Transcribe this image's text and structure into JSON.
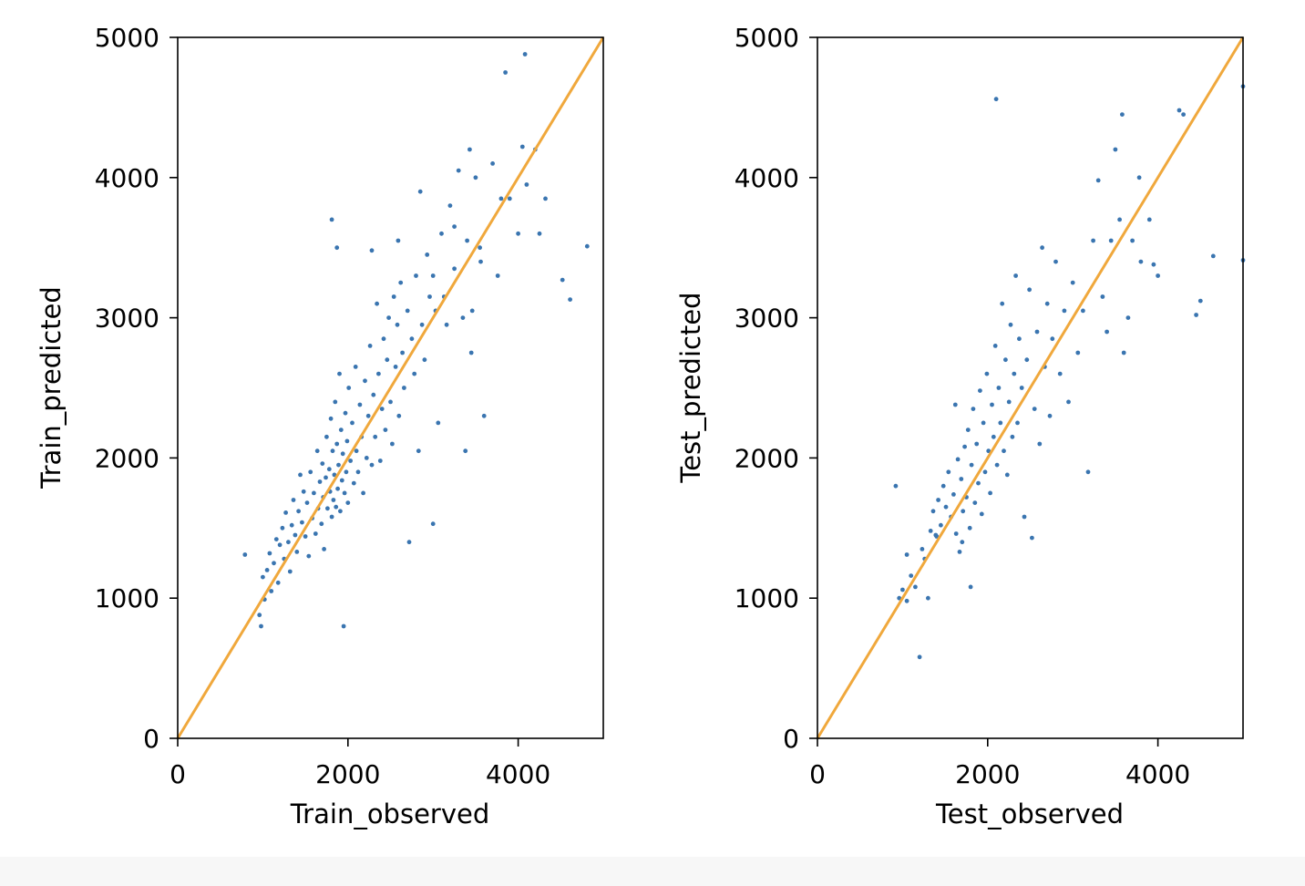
{
  "colors": {
    "points": "#3a75b0",
    "line": "#f0a83c",
    "axis": "#000000"
  },
  "chart_data": [
    {
      "type": "scatter",
      "xlabel": "Train_observed",
      "ylabel": "Train_predicted",
      "xlim": [
        0,
        5000
      ],
      "ylim": [
        0,
        5000
      ],
      "xticks": [
        0,
        2000,
        4000
      ],
      "yticks": [
        0,
        1000,
        2000,
        3000,
        4000,
        5000
      ],
      "reference_line": {
        "x": [
          0,
          5000
        ],
        "y": [
          0,
          5000
        ]
      },
      "points": [
        [
          790,
          1310
        ],
        [
          960,
          880
        ],
        [
          980,
          800
        ],
        [
          1000,
          1150
        ],
        [
          1020,
          990
        ],
        [
          1050,
          1200
        ],
        [
          1080,
          1320
        ],
        [
          1100,
          1050
        ],
        [
          1130,
          1250
        ],
        [
          1160,
          1420
        ],
        [
          1180,
          1110
        ],
        [
          1200,
          1380
        ],
        [
          1230,
          1500
        ],
        [
          1250,
          1280
        ],
        [
          1270,
          1610
        ],
        [
          1300,
          1400
        ],
        [
          1320,
          1190
        ],
        [
          1340,
          1520
        ],
        [
          1360,
          1700
        ],
        [
          1380,
          1450
        ],
        [
          1400,
          1330
        ],
        [
          1420,
          1620
        ],
        [
          1440,
          1880
        ],
        [
          1460,
          1540
        ],
        [
          1480,
          1760
        ],
        [
          1500,
          1440
        ],
        [
          1520,
          1680
        ],
        [
          1540,
          1300
        ],
        [
          1560,
          1900
        ],
        [
          1580,
          1570
        ],
        [
          1600,
          1750
        ],
        [
          1620,
          1460
        ],
        [
          1640,
          2050
        ],
        [
          1650,
          1640
        ],
        [
          1670,
          1830
        ],
        [
          1690,
          1530
        ],
        [
          1700,
          1960
        ],
        [
          1710,
          1720
        ],
        [
          1720,
          1350
        ],
        [
          1740,
          1860
        ],
        [
          1750,
          2150
        ],
        [
          1760,
          1640
        ],
        [
          1780,
          1920
        ],
        [
          1790,
          1760
        ],
        [
          1800,
          2280
        ],
        [
          1810,
          1580
        ],
        [
          1820,
          2050
        ],
        [
          1830,
          1700
        ],
        [
          1840,
          1880
        ],
        [
          1850,
          2400
        ],
        [
          1860,
          1650
        ],
        [
          1870,
          2100
        ],
        [
          1880,
          1780
        ],
        [
          1890,
          1950
        ],
        [
          1900,
          2600
        ],
        [
          1910,
          1620
        ],
        [
          1920,
          2200
        ],
        [
          1930,
          1840
        ],
        [
          1940,
          2030
        ],
        [
          1950,
          800
        ],
        [
          1960,
          1750
        ],
        [
          1970,
          2320
        ],
        [
          1980,
          1900
        ],
        [
          1990,
          2120
        ],
        [
          2000,
          1680
        ],
        [
          2010,
          2500
        ],
        [
          2030,
          1980
        ],
        [
          2050,
          2250
        ],
        [
          2070,
          1820
        ],
        [
          2090,
          2650
        ],
        [
          2100,
          2050
        ],
        [
          2120,
          1900
        ],
        [
          2140,
          2380
        ],
        [
          2160,
          2150
        ],
        [
          2180,
          1750
        ],
        [
          2200,
          2550
        ],
        [
          2220,
          2000
        ],
        [
          2240,
          2300
        ],
        [
          2260,
          2800
        ],
        [
          2280,
          1950
        ],
        [
          2300,
          2450
        ],
        [
          2320,
          2150
        ],
        [
          2340,
          3100
        ],
        [
          2360,
          2600
        ],
        [
          2380,
          1980
        ],
        [
          2400,
          2350
        ],
        [
          2420,
          2850
        ],
        [
          2440,
          2200
        ],
        [
          2460,
          2700
        ],
        [
          2480,
          3000
        ],
        [
          2500,
          2400
        ],
        [
          2520,
          2100
        ],
        [
          2540,
          3150
        ],
        [
          2560,
          2650
        ],
        [
          2580,
          2950
        ],
        [
          2600,
          2300
        ],
        [
          2620,
          3250
        ],
        [
          2640,
          2750
        ],
        [
          2660,
          2500
        ],
        [
          2700,
          3050
        ],
        [
          2720,
          1400
        ],
        [
          2750,
          2850
        ],
        [
          2780,
          2600
        ],
        [
          2800,
          3300
        ],
        [
          2830,
          2050
        ],
        [
          2850,
          3900
        ],
        [
          2870,
          2950
        ],
        [
          2900,
          2700
        ],
        [
          2930,
          3450
        ],
        [
          2960,
          3150
        ],
        [
          3000,
          1530
        ],
        [
          3030,
          3050
        ],
        [
          3060,
          2250
        ],
        [
          3100,
          3600
        ],
        [
          3130,
          3150
        ],
        [
          3160,
          2950
        ],
        [
          3200,
          3800
        ],
        [
          3250,
          3350
        ],
        [
          3300,
          4050
        ],
        [
          3350,
          3000
        ],
        [
          3380,
          2050
        ],
        [
          3400,
          3550
        ],
        [
          3430,
          4200
        ],
        [
          3460,
          3050
        ],
        [
          3500,
          4000
        ],
        [
          3560,
          3400
        ],
        [
          3600,
          2300
        ],
        [
          3700,
          4100
        ],
        [
          3760,
          3300
        ],
        [
          3800,
          3850
        ],
        [
          3850,
          4750
        ],
        [
          3900,
          3850
        ],
        [
          4000,
          3600
        ],
        [
          4050,
          4220
        ],
        [
          4080,
          4880
        ],
        [
          4100,
          3950
        ],
        [
          4200,
          4200
        ],
        [
          4250,
          3600
        ],
        [
          4320,
          3850
        ],
        [
          4520,
          3270
        ],
        [
          4610,
          3130
        ],
        [
          4810,
          3510
        ],
        [
          1810,
          3700
        ],
        [
          1870,
          3500
        ],
        [
          2280,
          3480
        ],
        [
          2590,
          3550
        ],
        [
          3000,
          3300
        ],
        [
          3250,
          3650
        ],
        [
          3550,
          3500
        ],
        [
          3450,
          2750
        ]
      ]
    },
    {
      "type": "scatter",
      "xlabel": "Test_observed",
      "ylabel": "Test_predicted",
      "xlim": [
        0,
        5000
      ],
      "ylim": [
        0,
        5000
      ],
      "xticks": [
        0,
        2000,
        4000
      ],
      "yticks": [
        0,
        1000,
        2000,
        3000,
        4000,
        5000
      ],
      "reference_line": {
        "x": [
          0,
          5000
        ],
        "y": [
          0,
          5000
        ]
      },
      "points": [
        [
          920,
          1800
        ],
        [
          960,
          1000
        ],
        [
          1000,
          1060
        ],
        [
          1050,
          980
        ],
        [
          1100,
          1160
        ],
        [
          1150,
          1080
        ],
        [
          1200,
          580
        ],
        [
          1230,
          1350
        ],
        [
          1260,
          1280
        ],
        [
          1300,
          1000
        ],
        [
          1330,
          1480
        ],
        [
          1360,
          1620
        ],
        [
          1390,
          1450
        ],
        [
          1420,
          1700
        ],
        [
          1450,
          1520
        ],
        [
          1480,
          1800
        ],
        [
          1510,
          1650
        ],
        [
          1540,
          1900
        ],
        [
          1570,
          1580
        ],
        [
          1600,
          1740
        ],
        [
          1630,
          1460
        ],
        [
          1650,
          1990
        ],
        [
          1670,
          1330
        ],
        [
          1690,
          1850
        ],
        [
          1710,
          1620
        ],
        [
          1730,
          2080
        ],
        [
          1750,
          1720
        ],
        [
          1770,
          2200
        ],
        [
          1790,
          1500
        ],
        [
          1810,
          1950
        ],
        [
          1830,
          2350
        ],
        [
          1850,
          1680
        ],
        [
          1870,
          2100
        ],
        [
          1890,
          1820
        ],
        [
          1910,
          2480
        ],
        [
          1930,
          1600
        ],
        [
          1950,
          2250
        ],
        [
          1970,
          1900
        ],
        [
          1990,
          2600
        ],
        [
          2010,
          2050
        ],
        [
          2030,
          1750
        ],
        [
          2050,
          2380
        ],
        [
          2070,
          2150
        ],
        [
          2090,
          2800
        ],
        [
          2110,
          1950
        ],
        [
          2130,
          2500
        ],
        [
          2150,
          2250
        ],
        [
          2170,
          3100
        ],
        [
          2190,
          2050
        ],
        [
          2210,
          2700
        ],
        [
          2230,
          1880
        ],
        [
          2250,
          2400
        ],
        [
          2270,
          2950
        ],
        [
          2290,
          2150
        ],
        [
          2310,
          2600
        ],
        [
          2330,
          3300
        ],
        [
          2350,
          2250
        ],
        [
          2370,
          2850
        ],
        [
          2400,
          2500
        ],
        [
          2430,
          1580
        ],
        [
          2460,
          2700
        ],
        [
          2490,
          3200
        ],
        [
          2520,
          1430
        ],
        [
          2550,
          2350
        ],
        [
          2580,
          2900
        ],
        [
          2610,
          2100
        ],
        [
          2640,
          3500
        ],
        [
          2670,
          2650
        ],
        [
          2700,
          3100
        ],
        [
          2730,
          2300
        ],
        [
          2760,
          2850
        ],
        [
          2800,
          3400
        ],
        [
          2850,
          2600
        ],
        [
          2900,
          3050
        ],
        [
          2950,
          2400
        ],
        [
          3000,
          3250
        ],
        [
          3060,
          2750
        ],
        [
          3120,
          3050
        ],
        [
          3180,
          1900
        ],
        [
          3240,
          3550
        ],
        [
          3300,
          3980
        ],
        [
          3350,
          3150
        ],
        [
          3400,
          2900
        ],
        [
          3450,
          3550
        ],
        [
          3500,
          4200
        ],
        [
          3550,
          3700
        ],
        [
          3580,
          4450
        ],
        [
          3600,
          2750
        ],
        [
          3650,
          3000
        ],
        [
          3700,
          3550
        ],
        [
          3780,
          4000
        ],
        [
          3800,
          3400
        ],
        [
          3900,
          3700
        ],
        [
          3950,
          3380
        ],
        [
          4000,
          3300
        ],
        [
          4250,
          4480
        ],
        [
          4300,
          4450
        ],
        [
          4450,
          3020
        ],
        [
          4500,
          3120
        ],
        [
          4650,
          3440
        ],
        [
          5000,
          3410
        ],
        [
          5000,
          4650
        ],
        [
          2100,
          4560
        ],
        [
          1050,
          1310
        ],
        [
          1400,
          1440
        ],
        [
          1620,
          2380
        ],
        [
          1700,
          1400
        ],
        [
          1800,
          1080
        ]
      ]
    }
  ]
}
